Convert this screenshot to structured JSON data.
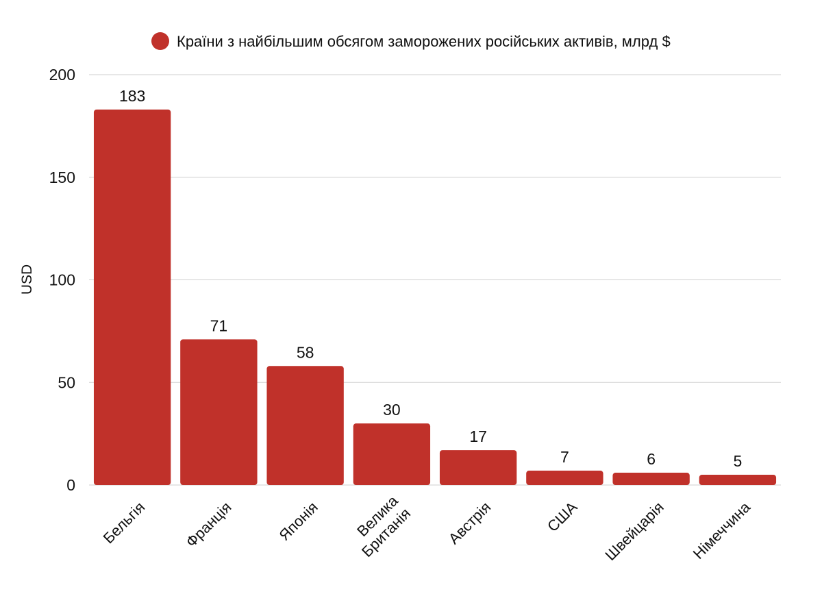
{
  "chart_data": {
    "type": "bar",
    "categories": [
      "Бельгія",
      "Франція",
      "Японія",
      "Велика Британія",
      "Австрія",
      "США",
      "Швейцарія",
      "Німеччина"
    ],
    "category_lines": [
      [
        "Бельгія"
      ],
      [
        "Франція"
      ],
      [
        "Японія"
      ],
      [
        "Велика",
        "Британія"
      ],
      [
        "Австрія"
      ],
      [
        "США"
      ],
      [
        "Швейцарія"
      ],
      [
        "Німеччина"
      ]
    ],
    "series": [
      {
        "name": "Країни з найбільшим обсягом заморожених російських активів, млрд $",
        "values": [
          183,
          71,
          58,
          30,
          17,
          7,
          6,
          5
        ],
        "color": "#c0312a"
      }
    ],
    "data_labels": [
      "183",
      "71",
      "58",
      "30",
      "17",
      "7",
      "6",
      "5"
    ],
    "ylabel": "USD",
    "xlabel": "",
    "ylim": [
      0,
      200
    ],
    "yticks": [
      0,
      50,
      100,
      150,
      200
    ],
    "ytick_labels": [
      "0",
      "50",
      "100",
      "150",
      "200"
    ],
    "grid": true,
    "legend_position": "top-center"
  }
}
